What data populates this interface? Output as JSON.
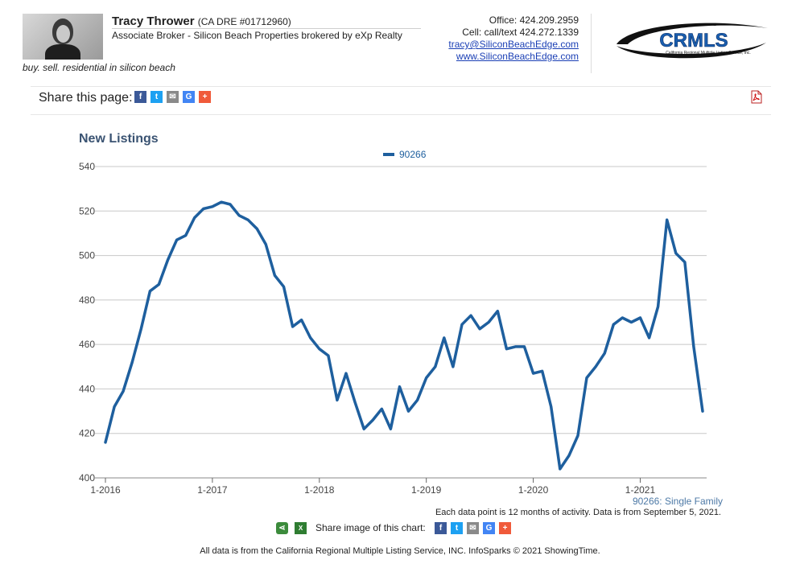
{
  "agent": {
    "name": "Tracy Thrower",
    "dre": "(CA DRE #01712960)",
    "title": "Associate Broker - Silicon Beach Properties brokered by eXp Realty",
    "tagline": "buy. sell. residential in silicon beach",
    "office": "Office: 424.209.2959",
    "cell": "Cell: call/text 424.272.1339",
    "email": "tracy@SiliconBeachEdge.com",
    "website": "www.SiliconBeachEdge.com"
  },
  "logo": {
    "text": "CRMLS",
    "subtext": "California Regional Multiple Listing Service, Inc."
  },
  "share_page": {
    "label": "Share this page:",
    "buttons": [
      {
        "icon": "facebook-icon",
        "glyph": "f",
        "color": "#3b5998"
      },
      {
        "icon": "twitter-icon",
        "glyph": "t",
        "color": "#1da1f2"
      },
      {
        "icon": "email-icon",
        "glyph": "✉",
        "color": "#8a8a8a"
      },
      {
        "icon": "google-icon",
        "glyph": "G",
        "color": "#4285f4"
      },
      {
        "icon": "more-icon",
        "glyph": "+",
        "color": "#f05a3a"
      }
    ]
  },
  "pdf_icon": "pdf-icon",
  "chart_data": {
    "type": "line",
    "title": "New Listings",
    "series": [
      {
        "name": "90266",
        "color": "#1e5f9e",
        "points": [
          [
            "2016-01",
            416
          ],
          [
            "2016-02",
            432
          ],
          [
            "2016-03",
            439
          ],
          [
            "2016-04",
            452
          ],
          [
            "2016-05",
            467
          ],
          [
            "2016-06",
            484
          ],
          [
            "2016-07",
            487
          ],
          [
            "2016-08",
            498
          ],
          [
            "2016-09",
            507
          ],
          [
            "2016-10",
            509
          ],
          [
            "2016-11",
            517
          ],
          [
            "2016-12",
            521
          ],
          [
            "2017-01",
            522
          ],
          [
            "2017-02",
            524
          ],
          [
            "2017-03",
            523
          ],
          [
            "2017-04",
            518
          ],
          [
            "2017-05",
            516
          ],
          [
            "2017-06",
            512
          ],
          [
            "2017-07",
            505
          ],
          [
            "2017-08",
            491
          ],
          [
            "2017-09",
            486
          ],
          [
            "2017-10",
            468
          ],
          [
            "2017-11",
            471
          ],
          [
            "2017-12",
            463
          ],
          [
            "2018-01",
            458
          ],
          [
            "2018-02",
            455
          ],
          [
            "2018-03",
            435
          ],
          [
            "2018-04",
            447
          ],
          [
            "2018-05",
            434
          ],
          [
            "2018-06",
            422
          ],
          [
            "2018-07",
            426
          ],
          [
            "2018-08",
            431
          ],
          [
            "2018-09",
            422
          ],
          [
            "2018-10",
            441
          ],
          [
            "2018-11",
            430
          ],
          [
            "2018-12",
            435
          ],
          [
            "2019-01",
            445
          ],
          [
            "2019-02",
            450
          ],
          [
            "2019-03",
            463
          ],
          [
            "2019-04",
            450
          ],
          [
            "2019-05",
            469
          ],
          [
            "2019-06",
            473
          ],
          [
            "2019-07",
            467
          ],
          [
            "2019-08",
            470
          ],
          [
            "2019-09",
            475
          ],
          [
            "2019-10",
            458
          ],
          [
            "2019-11",
            459
          ],
          [
            "2019-12",
            459
          ],
          [
            "2020-01",
            447
          ],
          [
            "2020-02",
            448
          ],
          [
            "2020-03",
            432
          ],
          [
            "2020-04",
            404
          ],
          [
            "2020-05",
            410
          ],
          [
            "2020-06",
            419
          ],
          [
            "2020-07",
            445
          ],
          [
            "2020-08",
            450
          ],
          [
            "2020-09",
            456
          ],
          [
            "2020-10",
            469
          ],
          [
            "2020-11",
            472
          ],
          [
            "2020-12",
            470
          ],
          [
            "2021-01",
            472
          ],
          [
            "2021-02",
            463
          ],
          [
            "2021-03",
            477
          ],
          [
            "2021-04",
            516
          ],
          [
            "2021-05",
            501
          ],
          [
            "2021-06",
            497
          ],
          [
            "2021-07",
            459
          ],
          [
            "2021-08",
            430
          ]
        ]
      }
    ],
    "x_ticks": [
      "1-2016",
      "1-2017",
      "1-2018",
      "1-2019",
      "1-2020",
      "1-2021"
    ],
    "y_ticks": [
      400,
      420,
      440,
      460,
      480,
      500,
      520,
      540
    ],
    "ylim": [
      400,
      540
    ],
    "xlim": [
      "2016-01",
      "2021-08"
    ],
    "grid": true,
    "legend_position": "top-center"
  },
  "notes": {
    "series_note": "90266: Single Family",
    "activity_note": "Each data point is 12 months of activity. Data is from September 5, 2021.",
    "share_image_label": "Share image of this chart:",
    "datasource": "All data is from the California Regional Multiple Listing Service, INC. InfoSparks © 2021 ShowingTime."
  }
}
